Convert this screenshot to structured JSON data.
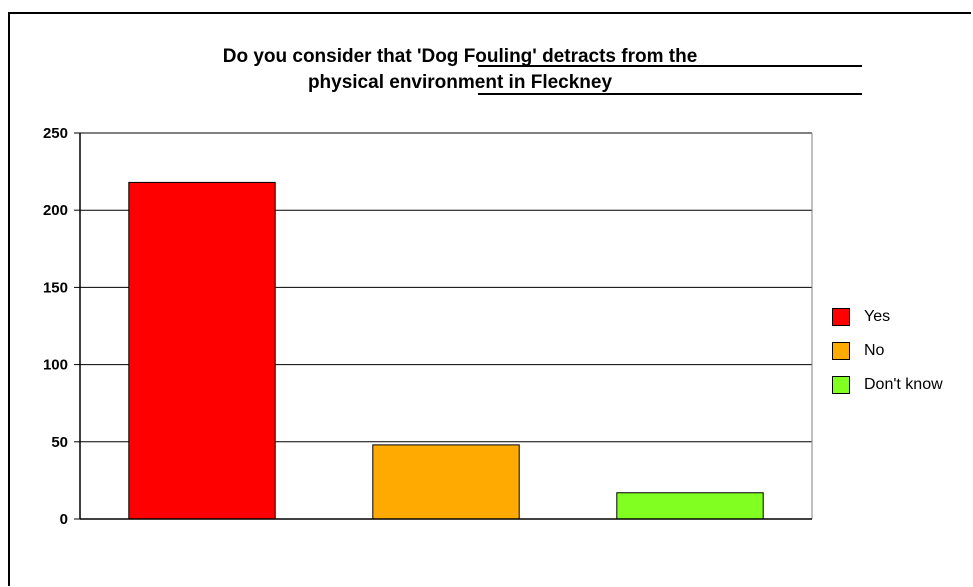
{
  "chart_data": {
    "type": "bar",
    "title_line1": "Do you consider that 'Dog Fouling' detracts from the",
    "title_line2": "physical environment in Fleckney",
    "categories": [
      "Yes",
      "No",
      "Don't know"
    ],
    "values": [
      218,
      48,
      17
    ],
    "colors": [
      "#ff0000",
      "#ffaa00",
      "#80ff20"
    ],
    "ylim": [
      0,
      250
    ],
    "yticks": [
      0,
      50,
      100,
      150,
      200,
      250
    ],
    "grid": true,
    "legend_position": "right",
    "xlabel": "",
    "ylabel": ""
  }
}
